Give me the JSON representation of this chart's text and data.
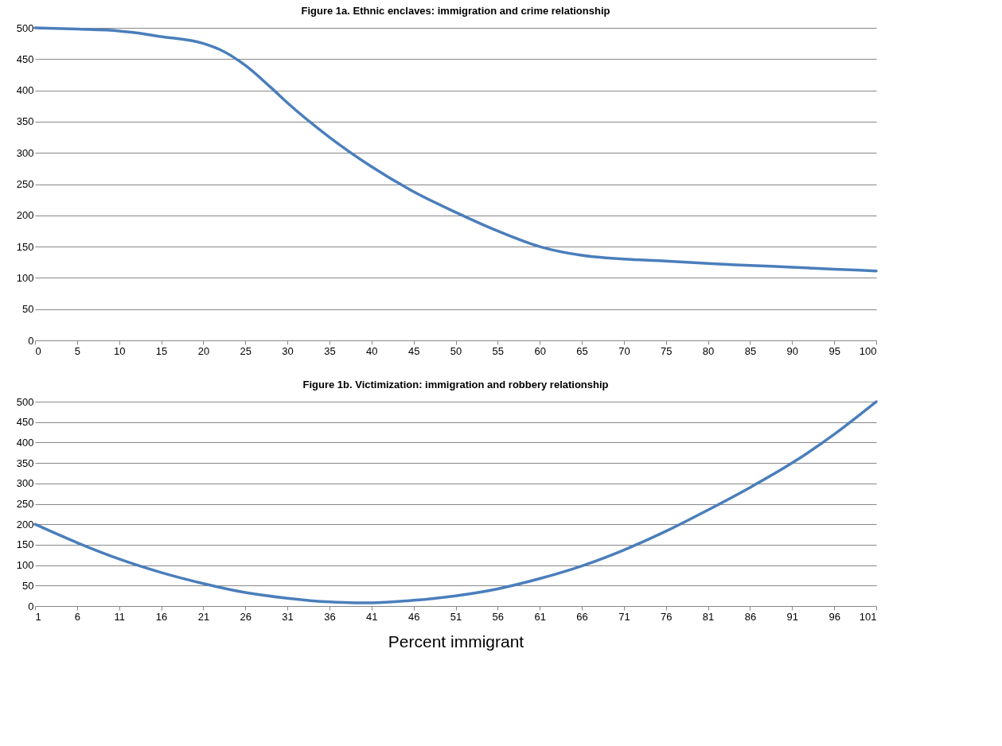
{
  "chart_data": [
    {
      "type": "line",
      "title": "Figure 1a. Ethnic enclaves: immigration and crime relationship",
      "x": [
        0,
        5,
        10,
        12,
        15,
        20,
        22,
        25,
        28,
        30,
        35,
        40,
        45,
        50,
        55,
        60,
        65,
        70,
        75,
        80,
        85,
        90,
        95,
        100
      ],
      "series": [
        {
          "color": "#4a7ebb",
          "values": [
            500,
            498,
            495,
            492,
            486,
            475,
            465,
            440,
            405,
            380,
            325,
            278,
            238,
            205,
            175,
            150,
            136,
            130,
            127,
            123,
            120,
            117,
            114,
            111
          ]
        }
      ],
      "xlim": [
        0,
        100
      ],
      "xticks": [
        0,
        5,
        10,
        15,
        20,
        25,
        30,
        35,
        40,
        45,
        50,
        55,
        60,
        65,
        70,
        75,
        80,
        85,
        90,
        95,
        100
      ],
      "ylim": [
        0,
        500
      ],
      "yticks": [
        0,
        50,
        100,
        150,
        200,
        250,
        300,
        350,
        400,
        450,
        500
      ],
      "grid": "y"
    },
    {
      "type": "line",
      "title": "Figure 1b. Victimization: immigration and robbery relationship",
      "xlabel": "Percent immigrant",
      "x": [
        1,
        6,
        11,
        16,
        21,
        26,
        31,
        36,
        39,
        41,
        46,
        51,
        56,
        61,
        66,
        71,
        76,
        81,
        86,
        91,
        96,
        101
      ],
      "series": [
        {
          "color": "#4a7ebb",
          "values": [
            200,
            155,
            115,
            82,
            55,
            33,
            19,
            10,
            8,
            8,
            14,
            25,
            42,
            67,
            98,
            137,
            183,
            235,
            290,
            350,
            420,
            500
          ]
        }
      ],
      "xlim": [
        1,
        101
      ],
      "xticks": [
        1,
        6,
        11,
        16,
        21,
        26,
        31,
        36,
        41,
        46,
        51,
        56,
        61,
        66,
        71,
        76,
        81,
        86,
        91,
        96,
        101
      ],
      "ylim": [
        0,
        500
      ],
      "yticks": [
        0,
        50,
        100,
        150,
        200,
        250,
        300,
        350,
        400,
        450,
        500
      ],
      "grid": "y"
    }
  ]
}
